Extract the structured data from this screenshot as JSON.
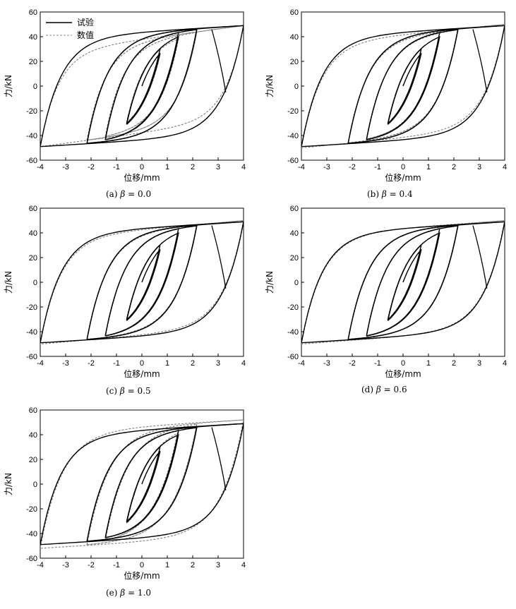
{
  "figure": {
    "xlabel": "位移/mm",
    "ylabel": "力/kN",
    "legend": [
      {
        "label": "试验",
        "style": "solid",
        "color": "#000000"
      },
      {
        "label": "数值",
        "style": "dashed",
        "color": "#888888"
      }
    ]
  },
  "chart_data": [
    {
      "type": "line",
      "caption": "(a) β = 0.0",
      "caption_prefix": "(a)",
      "caption_symbol": "β",
      "caption_value": "= 0.0",
      "beta": 0.0,
      "xlabel": "位移/mm",
      "ylabel": "力/kN",
      "xlim": [
        -4,
        4
      ],
      "ylim": [
        -60,
        60
      ],
      "xticks": [
        -4,
        -3,
        -2,
        -1,
        0,
        1,
        2,
        3,
        4
      ],
      "yticks": [
        -60,
        -40,
        -20,
        0,
        20,
        40,
        60
      ],
      "legend_position": "top-left",
      "series": [
        {
          "name": "试验",
          "style": "solid",
          "amplitudes": [
            1,
            2,
            3,
            4
          ],
          "peak_force": 49,
          "yield_force": 44,
          "final_point": [
            3.3,
            -5
          ]
        },
        {
          "name": "数值",
          "style": "dashed",
          "amplitudes": [
            1,
            2,
            3,
            4
          ],
          "peak_force": 49,
          "yield_force": 38
        }
      ]
    },
    {
      "type": "line",
      "caption": "(b) β = 0.4",
      "caption_prefix": "(b)",
      "caption_symbol": "β",
      "caption_value": "= 0.4",
      "beta": 0.4,
      "xlabel": "位移/mm",
      "ylabel": "力/kN",
      "xlim": [
        -4,
        4
      ],
      "ylim": [
        -60,
        60
      ],
      "xticks": [
        -4,
        -3,
        -2,
        -1,
        0,
        1,
        2,
        3,
        4
      ],
      "yticks": [
        -60,
        -40,
        -20,
        0,
        20,
        40,
        60
      ],
      "series": [
        {
          "name": "试验",
          "style": "solid",
          "amplitudes": [
            1,
            2,
            3,
            4
          ],
          "peak_force": 49,
          "yield_force": 44,
          "final_point": [
            3.3,
            -5
          ]
        },
        {
          "name": "数值",
          "style": "dashed",
          "amplitudes": [
            1,
            2,
            3,
            4
          ],
          "peak_force": 50,
          "yield_force": 42
        }
      ]
    },
    {
      "type": "line",
      "caption": "(c) β = 0.5",
      "caption_prefix": "(c)",
      "caption_symbol": "β",
      "caption_value": "= 0.5",
      "beta": 0.5,
      "xlabel": "位移/mm",
      "ylabel": "力/kN",
      "xlim": [
        -4,
        4
      ],
      "ylim": [
        -60,
        60
      ],
      "xticks": [
        -4,
        -3,
        -2,
        -1,
        0,
        1,
        2,
        3,
        4
      ],
      "yticks": [
        -60,
        -40,
        -20,
        0,
        20,
        40,
        60
      ],
      "series": [
        {
          "name": "试验",
          "style": "solid",
          "amplitudes": [
            1,
            2,
            3,
            4
          ],
          "peak_force": 49,
          "yield_force": 44,
          "final_point": [
            3.3,
            -5
          ]
        },
        {
          "name": "数值",
          "style": "dashed",
          "amplitudes": [
            1,
            2,
            3,
            4
          ],
          "peak_force": 50,
          "yield_force": 43
        }
      ]
    },
    {
      "type": "line",
      "caption": "(d) β = 0.6",
      "caption_prefix": "(d)",
      "caption_symbol": "β",
      "caption_value": "= 0.6",
      "beta": 0.6,
      "xlabel": "位移/mm",
      "ylabel": "力/kN",
      "xlim": [
        -4,
        4
      ],
      "ylim": [
        -60,
        60
      ],
      "xticks": [
        -4,
        -3,
        -2,
        -1,
        0,
        1,
        2,
        3,
        4
      ],
      "yticks": [
        -60,
        -40,
        -20,
        0,
        20,
        40,
        60
      ],
      "series": [
        {
          "name": "试验",
          "style": "solid",
          "amplitudes": [
            1,
            2,
            3,
            4
          ],
          "peak_force": 49,
          "yield_force": 44,
          "final_point": [
            3.3,
            -5
          ]
        },
        {
          "name": "数值",
          "style": "dashed",
          "amplitudes": [
            1,
            2,
            3,
            4
          ],
          "peak_force": 50,
          "yield_force": 44
        }
      ]
    },
    {
      "type": "line",
      "caption": "(e) β = 1.0",
      "caption_prefix": "(e)",
      "caption_symbol": "β",
      "caption_value": "= 1.0",
      "beta": 1.0,
      "xlabel": "位移/mm",
      "ylabel": "力/kN",
      "xlim": [
        -4,
        4
      ],
      "ylim": [
        -60,
        60
      ],
      "xticks": [
        -4,
        -3,
        -2,
        -1,
        0,
        1,
        2,
        3,
        4
      ],
      "yticks": [
        -60,
        -40,
        -20,
        0,
        20,
        40,
        60
      ],
      "series": [
        {
          "name": "试验",
          "style": "solid",
          "amplitudes": [
            1,
            2,
            3,
            4
          ],
          "peak_force": 49,
          "yield_force": 44,
          "final_point": [
            3.3,
            -5
          ]
        },
        {
          "name": "数值",
          "style": "dashed",
          "amplitudes": [
            1,
            2,
            3,
            4
          ],
          "peak_force": 52,
          "yield_force": 47
        }
      ]
    }
  ]
}
